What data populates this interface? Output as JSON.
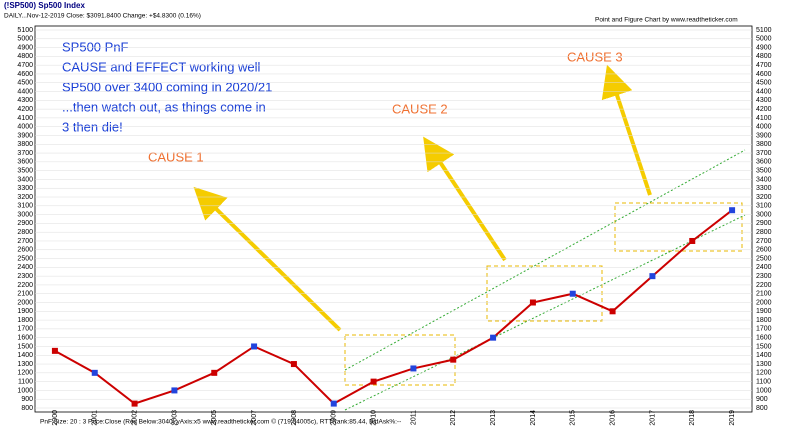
{
  "chart_data": {
    "type": "line",
    "title": "(!SP500) Sp500 Index",
    "subtitle": "DAILY...Nov-12-2019 Close: $3091.8400 Change: +$4.8300 (0.16%)",
    "credit": "Point and Figure Chart by www.readtheticker.com",
    "footer": "PnF Size: 20 : 3    Price:Close (Rev Below:3040) yAxis:x5    www.readtheticker.com © (719.54005c), RTTRank:85.44, BidAsk%:--",
    "note_lines": [
      "SP500 PnF",
      "CAUSE and EFFECT working well",
      "SP500 over 3400 coming in 2020/21",
      "...then watch out, as things come in",
      "3 then die!"
    ],
    "annotations": [
      "CAUSE 1",
      "CAUSE 2",
      "CAUSE 3"
    ],
    "categories": [
      "2000",
      "2001",
      "2002",
      "2003",
      "2005",
      "2007",
      "2008",
      "2009",
      "2010",
      "2011",
      "2012",
      "2013",
      "2014",
      "2015",
      "2016",
      "2017",
      "2018",
      "2019"
    ],
    "series": [
      {
        "name": "SP500",
        "color": "#cc0000",
        "values": [
          1450,
          1200,
          850,
          1000,
          1200,
          1500,
          1300,
          850,
          1100,
          1250,
          1350,
          1600,
          2000,
          2100,
          1900,
          2300,
          2700,
          3050
        ]
      }
    ],
    "ylim": [
      800,
      5100
    ],
    "yticks": [
      800,
      900,
      1000,
      1100,
      1200,
      1300,
      1400,
      1500,
      1600,
      1700,
      1800,
      1900,
      2000,
      2100,
      2200,
      2300,
      2400,
      2500,
      2600,
      2700,
      2800,
      2900,
      3000,
      3100,
      3200,
      3300,
      3400,
      3500,
      3600,
      3700,
      3800,
      3900,
      4000,
      4100,
      4200,
      4300,
      4400,
      4500,
      4600,
      4700,
      4800,
      4900,
      5000,
      5100
    ],
    "grid": true
  }
}
